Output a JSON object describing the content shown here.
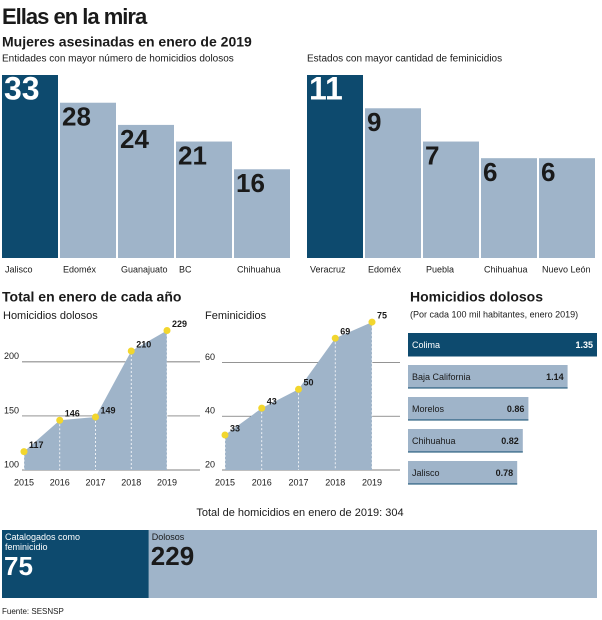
{
  "title": "Ellas en la mira",
  "subtitle": "Mujeres asesinadas en enero de 2019",
  "section_title": "Total en enero de cada año",
  "source": "Fuente: SESNSP",
  "chart_data": [
    {
      "type": "bar",
      "title": "Entidades con mayor número de homicidios dolosos",
      "categories": [
        "Jalisco",
        "Edoméx",
        "Guanajuato",
        "BC",
        "Chihuahua"
      ],
      "values": [
        33,
        28,
        24,
        21,
        16
      ],
      "colors": [
        "#0d4a6e",
        "#9fb4c9",
        "#9fb4c9",
        "#9fb4c9",
        "#9fb4c9"
      ],
      "ylim": [
        0,
        33
      ]
    },
    {
      "type": "bar",
      "title": "Estados con mayor cantidad de feminicidios",
      "categories": [
        "Veracruz",
        "Edoméx",
        "Puebla",
        "Chihuahua",
        "Nuevo León"
      ],
      "values": [
        11,
        9,
        7,
        6,
        6
      ],
      "colors": [
        "#0d4a6e",
        "#9fb4c9",
        "#9fb4c9",
        "#9fb4c9",
        "#9fb4c9"
      ],
      "ylim": [
        0,
        11
      ]
    },
    {
      "type": "area",
      "title": "Homicidios dolosos",
      "x": [
        2015,
        2016,
        2017,
        2018,
        2019
      ],
      "values": [
        117,
        146,
        149,
        210,
        229
      ],
      "xlim": [
        2015,
        2019
      ],
      "ylim": [
        100,
        235
      ],
      "yticks": [
        100,
        150,
        200
      ],
      "color": "#9fb4c9",
      "point_color": "#f2d62e",
      "grid": true
    },
    {
      "type": "area",
      "title": "Feminicidios",
      "x": [
        2015,
        2016,
        2017,
        2018,
        2019
      ],
      "values": [
        33,
        43,
        50,
        69,
        75
      ],
      "xlim": [
        2015,
        2019
      ],
      "ylim": [
        20,
        78
      ],
      "yticks": [
        20,
        40,
        60
      ],
      "color": "#9fb4c9",
      "point_color": "#f2d62e",
      "grid": true
    },
    {
      "type": "hbar",
      "title": "Homicidios dolosos",
      "subtitle": "(Por cada 100 mil habitantes, enero 2019)",
      "categories": [
        "Colima",
        "Baja California",
        "Morelos",
        "Chihuahua",
        "Jalisco"
      ],
      "values": [
        1.35,
        1.14,
        0.86,
        0.82,
        0.78
      ],
      "colors": [
        "#0d4a6e",
        "#9fb4c9",
        "#9fb4c9",
        "#9fb4c9",
        "#9fb4c9"
      ],
      "xlim": [
        0,
        1.35
      ]
    },
    {
      "type": "stacked",
      "title": "Total de homicidios en enero de 2019: 304",
      "series": [
        {
          "name": "Catalogados como feminicidio",
          "color": "#0d4a6e",
          "values": [
            75
          ]
        },
        {
          "name": "Dolosos",
          "color": "#9fb4c9",
          "values": [
            229
          ]
        }
      ],
      "xlim": [
        0,
        304
      ]
    }
  ]
}
